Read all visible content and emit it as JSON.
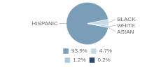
{
  "chart_data": {
    "type": "pie",
    "categories": [
      "HISPANIC",
      "BLACK",
      "WHITE",
      "ASIAN"
    ],
    "values": [
      93.9,
      4.7,
      1.2,
      0.2
    ],
    "value_labels": [
      "93.9%",
      "4.7%",
      "1.2%",
      "0.2%"
    ],
    "colors": [
      "#7b9eb8",
      "#c5d9e5",
      "#b2c9d8",
      "#2b4a68"
    ],
    "legend": "bottom"
  }
}
